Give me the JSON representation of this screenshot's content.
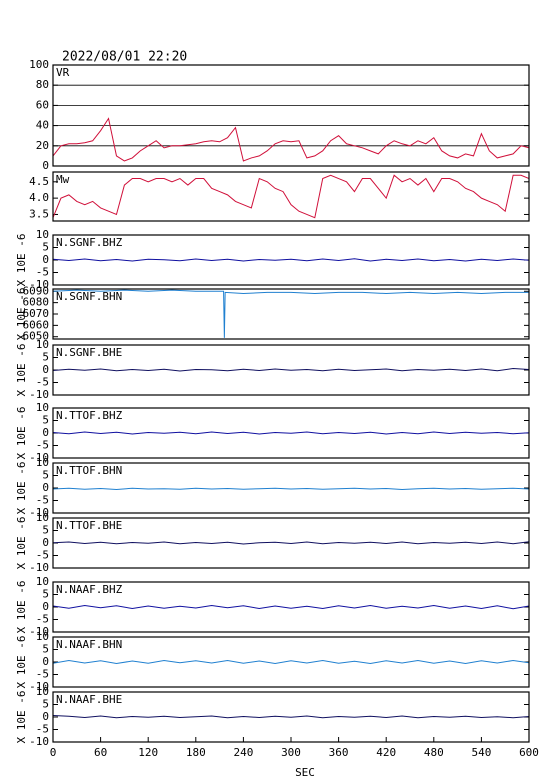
{
  "chart_data": [
    {
      "type": "line",
      "title": "2022/08/01 22:20",
      "label": "VR",
      "xlim": [
        0,
        600
      ],
      "ylim": [
        0,
        100
      ],
      "yticks": [
        0,
        20,
        40,
        60,
        80,
        100
      ],
      "grid": true,
      "x": [
        0,
        10,
        20,
        30,
        40,
        50,
        60,
        70,
        80,
        90,
        100,
        110,
        120,
        130,
        140,
        150,
        160,
        170,
        180,
        190,
        200,
        210,
        220,
        230,
        240,
        250,
        260,
        270,
        280,
        290,
        300,
        310,
        320,
        330,
        340,
        350,
        360,
        370,
        380,
        390,
        400,
        410,
        420,
        430,
        440,
        450,
        460,
        470,
        480,
        490,
        500,
        510,
        520,
        530,
        540,
        550,
        560,
        570,
        580,
        590,
        600
      ],
      "series": [
        {
          "color": "#d0103a",
          "values": [
            10,
            20,
            22,
            22,
            23,
            25,
            35,
            47,
            10,
            5,
            8,
            15,
            20,
            25,
            18,
            20,
            20,
            21,
            22,
            24,
            25,
            24,
            28,
            38,
            5,
            8,
            10,
            15,
            22,
            25,
            24,
            25,
            8,
            10,
            15,
            25,
            30,
            22,
            20,
            18,
            15,
            12,
            20,
            25,
            22,
            20,
            25,
            22,
            28,
            15,
            10,
            8,
            12,
            10,
            32,
            15,
            8,
            10,
            12,
            20,
            18
          ]
        }
      ]
    },
    {
      "type": "line",
      "label": "Mw",
      "xlim": [
        0,
        600
      ],
      "ylim": [
        3.3,
        4.8
      ],
      "yticks": [
        3.5,
        {
          "value": 4,
          "label": "4.0"
        },
        4.5
      ],
      "x": [
        0,
        10,
        20,
        30,
        40,
        50,
        60,
        70,
        80,
        90,
        100,
        110,
        120,
        130,
        140,
        150,
        160,
        170,
        180,
        190,
        200,
        210,
        220,
        230,
        240,
        250,
        260,
        270,
        280,
        290,
        300,
        310,
        320,
        330,
        340,
        350,
        360,
        370,
        380,
        390,
        400,
        410,
        420,
        430,
        440,
        450,
        460,
        470,
        480,
        490,
        500,
        510,
        520,
        530,
        540,
        550,
        560,
        570,
        580,
        590,
        600
      ],
      "series": [
        {
          "color": "#d0103a",
          "values": [
            3.4,
            4.0,
            4.1,
            3.9,
            3.8,
            3.9,
            3.7,
            3.6,
            3.5,
            4.4,
            4.6,
            4.6,
            4.5,
            4.6,
            4.6,
            4.5,
            4.6,
            4.4,
            4.6,
            4.6,
            4.3,
            4.2,
            4.1,
            3.9,
            3.8,
            3.7,
            4.6,
            4.5,
            4.3,
            4.2,
            3.8,
            3.6,
            3.5,
            3.4,
            4.6,
            4.7,
            4.6,
            4.5,
            4.2,
            4.6,
            4.6,
            4.3,
            4.0,
            4.7,
            4.5,
            4.6,
            4.4,
            4.6,
            4.2,
            4.6,
            4.6,
            4.5,
            4.3,
            4.2,
            4.0,
            3.9,
            3.8,
            3.6,
            4.7,
            4.7,
            4.6
          ]
        }
      ]
    },
    {
      "type": "line",
      "label": "N.SGNF.BHZ",
      "ylabel": "X 10E -6",
      "xlim": [
        0,
        600
      ],
      "ylim": [
        -10,
        10
      ],
      "yticks": [
        -10,
        -5,
        0,
        5,
        10
      ],
      "x": [
        0,
        20,
        40,
        60,
        80,
        100,
        120,
        140,
        160,
        180,
        200,
        220,
        240,
        260,
        280,
        300,
        320,
        340,
        360,
        380,
        400,
        420,
        440,
        460,
        480,
        500,
        520,
        540,
        560,
        580,
        600
      ],
      "series": [
        {
          "color": "#1010a0",
          "values": [
            0.3,
            -0.2,
            0.4,
            -0.3,
            0.2,
            -0.4,
            0.3,
            0.1,
            -0.3,
            0.4,
            -0.2,
            0.3,
            -0.4,
            0.2,
            -0.1,
            0.3,
            -0.3,
            0.4,
            -0.2,
            0.5,
            -0.4,
            0.3,
            -0.2,
            0.4,
            -0.3,
            0.2,
            -0.4,
            0.3,
            -0.2,
            0.4,
            -0.1
          ]
        }
      ]
    },
    {
      "type": "line",
      "label": "N.SGNF.BHN",
      "ylabel": "X 10E -6",
      "xlim": [
        0,
        600
      ],
      "ylim": [
        6048,
        6092
      ],
      "yticks": [
        6050,
        6060,
        6070,
        6080,
        6090
      ],
      "x": [
        0,
        30,
        60,
        90,
        120,
        150,
        180,
        210,
        215,
        216,
        217,
        240,
        270,
        300,
        330,
        360,
        390,
        420,
        450,
        480,
        510,
        540,
        570,
        600
      ],
      "series": [
        {
          "color": "#2080d0",
          "values": [
            6090,
            6091,
            6090,
            6091,
            6090,
            6091,
            6090,
            6090,
            6090,
            6049,
            6089,
            6088,
            6089,
            6089,
            6088,
            6089,
            6089,
            6088,
            6089,
            6088,
            6089,
            6088,
            6089,
            6089
          ]
        }
      ]
    },
    {
      "type": "line",
      "label": "N.SGNF.BHE",
      "ylabel": "X 10E -6",
      "xlim": [
        0,
        600
      ],
      "ylim": [
        -10,
        10
      ],
      "yticks": [
        -10,
        -5,
        0,
        5,
        10
      ],
      "x": [
        0,
        20,
        40,
        60,
        80,
        100,
        120,
        140,
        160,
        180,
        200,
        220,
        240,
        260,
        280,
        300,
        320,
        340,
        360,
        380,
        400,
        420,
        440,
        460,
        480,
        500,
        520,
        540,
        560,
        580,
        600
      ],
      "series": [
        {
          "color": "#101060",
          "values": [
            -0.2,
            0.3,
            -0.1,
            0.4,
            -0.3,
            0.2,
            -0.2,
            0.3,
            -0.4,
            0.2,
            0.1,
            -0.3,
            0.3,
            -0.2,
            0.4,
            -0.1,
            0.2,
            -0.3,
            0.3,
            -0.2,
            0.1,
            0.4,
            -0.3,
            0.2,
            -0.1,
            0.3,
            -0.2,
            0.4,
            -0.3,
            0.6,
            0.2
          ]
        }
      ]
    },
    {
      "type": "line",
      "label": "N.TTOF.BHZ",
      "ylabel": "X 10E -6",
      "xlim": [
        0,
        600
      ],
      "ylim": [
        -10,
        10
      ],
      "yticks": [
        -10,
        -5,
        0,
        5,
        10
      ],
      "x": [
        0,
        20,
        40,
        60,
        80,
        100,
        120,
        140,
        160,
        180,
        200,
        220,
        240,
        260,
        280,
        300,
        320,
        340,
        360,
        380,
        400,
        420,
        440,
        460,
        480,
        500,
        520,
        540,
        560,
        580,
        600
      ],
      "series": [
        {
          "color": "#1010a0",
          "values": [
            0.2,
            -0.3,
            0.4,
            -0.2,
            0.3,
            -0.4,
            0.2,
            -0.1,
            0.3,
            -0.3,
            0.4,
            -0.2,
            0.3,
            -0.4,
            0.2,
            -0.1,
            0.4,
            -0.3,
            0.2,
            -0.2,
            0.3,
            -0.4,
            0.2,
            -0.3,
            0.4,
            -0.2,
            0.3,
            -0.1,
            0.2,
            -0.3,
            0.1
          ]
        }
      ]
    },
    {
      "type": "line",
      "label": "N.TTOF.BHN",
      "ylabel": "X 10E -6",
      "xlim": [
        0,
        600
      ],
      "ylim": [
        -10,
        10
      ],
      "yticks": [
        -10,
        -5,
        0,
        5,
        10
      ],
      "x": [
        0,
        20,
        40,
        60,
        80,
        100,
        120,
        140,
        160,
        180,
        200,
        220,
        240,
        260,
        280,
        300,
        320,
        340,
        360,
        380,
        400,
        420,
        440,
        460,
        480,
        500,
        520,
        540,
        560,
        580,
        600
      ],
      "series": [
        {
          "color": "#2080d0",
          "values": [
            -0.4,
            -0.1,
            -0.5,
            -0.2,
            -0.6,
            -0.1,
            -0.4,
            -0.3,
            -0.5,
            -0.1,
            -0.4,
            -0.2,
            -0.5,
            -0.3,
            -0.1,
            -0.4,
            -0.2,
            -0.5,
            -0.3,
            -0.1,
            -0.4,
            -0.2,
            -0.6,
            -0.3,
            -0.1,
            -0.4,
            -0.2,
            -0.5,
            -0.3,
            -0.1,
            -0.4
          ]
        }
      ]
    },
    {
      "type": "line",
      "label": "N.TTOF.BHE",
      "ylabel": "X 10E -6",
      "xlim": [
        0,
        600
      ],
      "ylim": [
        -10,
        10
      ],
      "yticks": [
        -10,
        -5,
        0,
        5,
        10
      ],
      "x": [
        0,
        20,
        40,
        60,
        80,
        100,
        120,
        140,
        160,
        180,
        200,
        220,
        240,
        260,
        280,
        300,
        320,
        340,
        360,
        380,
        400,
        420,
        440,
        460,
        480,
        500,
        520,
        540,
        560,
        580,
        600
      ],
      "series": [
        {
          "color": "#101060",
          "values": [
            0.1,
            0.4,
            -0.2,
            0.3,
            -0.3,
            0.2,
            -0.1,
            0.4,
            -0.3,
            0.2,
            -0.2,
            0.3,
            -0.4,
            0.1,
            0.3,
            -0.2,
            0.4,
            -0.3,
            0.2,
            -0.1,
            0.3,
            -0.2,
            0.4,
            -0.3,
            0.2,
            -0.1,
            0.3,
            -0.2,
            0.4,
            -0.3,
            0.5
          ]
        }
      ]
    },
    {
      "type": "line",
      "label": "N.NAAF.BHZ",
      "ylabel": "X 10E -6",
      "xlim": [
        0,
        600
      ],
      "ylim": [
        -10,
        10
      ],
      "yticks": [
        -10,
        -5,
        0,
        5,
        10
      ],
      "x": [
        0,
        20,
        40,
        60,
        80,
        100,
        120,
        140,
        160,
        180,
        200,
        220,
        240,
        260,
        280,
        300,
        320,
        340,
        360,
        380,
        400,
        420,
        440,
        460,
        480,
        500,
        520,
        540,
        560,
        580,
        600
      ],
      "series": [
        {
          "color": "#1010a0",
          "values": [
            0.4,
            -0.5,
            0.6,
            -0.3,
            0.5,
            -0.6,
            0.4,
            -0.5,
            0.3,
            -0.4,
            0.6,
            -0.3,
            0.5,
            -0.6,
            0.4,
            -0.5,
            0.3,
            -0.6,
            0.5,
            -0.4,
            0.6,
            -0.5,
            0.3,
            -0.4,
            0.6,
            -0.5,
            0.4,
            -0.6,
            0.5,
            -0.7,
            0.4
          ]
        }
      ]
    },
    {
      "type": "line",
      "label": "N.NAAF.BHN",
      "ylabel": "X 10E -6",
      "xlim": [
        0,
        600
      ],
      "ylim": [
        -10,
        10
      ],
      "yticks": [
        -10,
        -5,
        0,
        5,
        10
      ],
      "x": [
        0,
        20,
        40,
        60,
        80,
        100,
        120,
        140,
        160,
        180,
        200,
        220,
        240,
        260,
        280,
        300,
        320,
        340,
        360,
        380,
        400,
        420,
        440,
        460,
        480,
        500,
        520,
        540,
        560,
        580,
        600
      ],
      "series": [
        {
          "color": "#2080d0",
          "values": [
            -0.5,
            0.6,
            -0.4,
            0.5,
            -0.6,
            0.4,
            -0.5,
            0.6,
            -0.3,
            0.5,
            -0.4,
            0.6,
            -0.5,
            0.4,
            -0.6,
            0.5,
            -0.4,
            0.6,
            -0.5,
            0.3,
            -0.6,
            0.5,
            -0.4,
            0.6,
            -0.5,
            0.4,
            -0.6,
            0.5,
            -0.4,
            0.6,
            -0.3
          ]
        }
      ]
    },
    {
      "type": "line",
      "label": "N.NAAF.BHE",
      "ylabel": "X 10E -6",
      "xlabel": "SEC",
      "xlim": [
        0,
        600
      ],
      "ylim": [
        -10,
        10
      ],
      "yticks": [
        -10,
        -5,
        0,
        5,
        10
      ],
      "xticks": [
        0,
        60,
        120,
        180,
        240,
        300,
        360,
        420,
        480,
        540,
        600
      ],
      "x": [
        0,
        20,
        40,
        60,
        80,
        100,
        120,
        140,
        160,
        180,
        200,
        220,
        240,
        260,
        280,
        300,
        320,
        340,
        360,
        380,
        400,
        420,
        440,
        460,
        480,
        500,
        520,
        540,
        560,
        580,
        600
      ],
      "series": [
        {
          "color": "#101060",
          "values": [
            0.6,
            0.3,
            -0.2,
            0.4,
            -0.3,
            0.2,
            -0.1,
            0.3,
            -0.2,
            0.1,
            0.4,
            -0.3,
            0.2,
            -0.2,
            0.3,
            -0.1,
            0.4,
            -0.3,
            0.2,
            -0.1,
            0.3,
            -0.2,
            0.4,
            -0.3,
            0.2,
            -0.1,
            0.3,
            -0.2,
            0.1,
            -0.3,
            0.2
          ]
        }
      ]
    }
  ]
}
